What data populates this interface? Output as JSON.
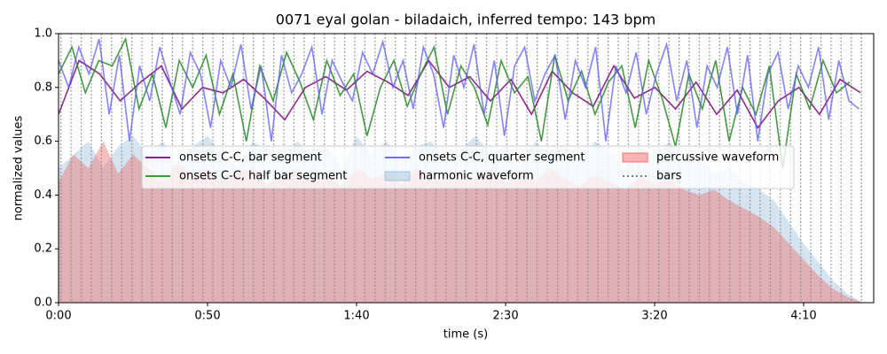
{
  "chart_data": {
    "type": "line",
    "title": "0071 eyal golan - biladaich, inferred tempo: 143 bpm",
    "x_label": "time (s)",
    "y_label": "normalized values",
    "xlim": [
      0,
      273.5
    ],
    "ylim": [
      0,
      1
    ],
    "xticks": [
      {
        "value": 0,
        "label": "0:00"
      },
      {
        "value": 50,
        "label": "0:50"
      },
      {
        "value": 100,
        "label": "1:40"
      },
      {
        "value": 150,
        "label": "2:30"
      },
      {
        "value": 200,
        "label": "3:20"
      },
      {
        "value": 250,
        "label": "4:10"
      }
    ],
    "yticks": [
      {
        "value": 0,
        "label": "0.0"
      },
      0.2,
      0.4,
      0.6,
      0.8,
      {
        "value": 1,
        "label": "1.0"
      }
    ],
    "legend": "upper center",
    "series": [
      {
        "name": "onsets C-C, bar segment",
        "kind": "line",
        "color": "#800080",
        "x": [
          0,
          6.9,
          13.8,
          20.7,
          27.6,
          34.5,
          41.4,
          48.3,
          55.2,
          62.1,
          69,
          75.9,
          82.8,
          89.7,
          96.6,
          103.5,
          110.4,
          117.3,
          124.2,
          131.1,
          138,
          144.9,
          151.8,
          158.7,
          165.6,
          172.5,
          179.4,
          186.3,
          193.2,
          200.1,
          207,
          213.9,
          220.8,
          227.7,
          234.6,
          241.5,
          248.4,
          255.3,
          262.2,
          269.1
        ],
        "values": [
          0.7,
          0.9,
          0.85,
          0.75,
          0.82,
          0.88,
          0.72,
          0.8,
          0.78,
          0.83,
          0.76,
          0.68,
          0.8,
          0.84,
          0.79,
          0.86,
          0.82,
          0.77,
          0.9,
          0.8,
          0.84,
          0.75,
          0.83,
          0.7,
          0.86,
          0.78,
          0.73,
          0.88,
          0.76,
          0.8,
          0.72,
          0.82,
          0.7,
          0.79,
          0.65,
          0.75,
          0.8,
          0.7,
          0.83,
          0.78
        ]
      },
      {
        "name": "onsets C-C, half bar segment",
        "kind": "line",
        "color": "#228b22",
        "x": [
          0,
          4.5,
          9,
          13.5,
          18,
          22.5,
          27,
          31.5,
          36,
          40.5,
          45,
          49.5,
          54,
          58.5,
          63,
          67.5,
          72,
          76.5,
          81,
          85.5,
          90,
          94.5,
          99,
          103.5,
          108,
          112.5,
          117,
          121.5,
          126,
          130.5,
          135,
          139.5,
          144,
          148.5,
          153,
          157.5,
          162,
          166.5,
          171,
          175.5,
          180,
          184.5,
          189,
          193.5,
          198,
          202.5,
          207,
          211.5,
          216,
          220.5,
          225,
          229.5,
          234,
          238.5,
          243,
          247.5,
          252,
          256.5,
          261,
          265.5
        ],
        "values": [
          0.85,
          0.95,
          0.78,
          0.9,
          0.88,
          0.98,
          0.72,
          0.85,
          0.65,
          0.9,
          0.8,
          0.92,
          0.7,
          0.85,
          0.6,
          0.88,
          0.75,
          0.93,
          0.82,
          0.68,
          0.9,
          0.77,
          0.85,
          0.62,
          0.8,
          0.9,
          0.73,
          0.85,
          0.95,
          0.7,
          0.88,
          0.8,
          0.66,
          0.9,
          0.78,
          0.84,
          0.6,
          0.92,
          0.75,
          0.86,
          0.7,
          0.82,
          0.88,
          0.65,
          0.9,
          0.76,
          0.58,
          0.85,
          0.72,
          0.9,
          0.6,
          0.8,
          0.7,
          0.88,
          0.5,
          0.85,
          0.72,
          0.9,
          0.78,
          0.82
        ]
      },
      {
        "name": "onsets C-C, quarter segment",
        "kind": "line",
        "color": "#5a5aff",
        "x": [
          0,
          3.4,
          6.8,
          10.2,
          13.6,
          17,
          20.4,
          23.8,
          27.2,
          30.6,
          34,
          37.4,
          40.8,
          44.2,
          47.6,
          51,
          54.4,
          57.8,
          61.2,
          64.6,
          68,
          71.4,
          74.8,
          78.2,
          81.6,
          85,
          88.4,
          91.8,
          95.2,
          98.6,
          102,
          105.4,
          108.8,
          112.2,
          115.6,
          119,
          122.4,
          125.8,
          129.2,
          132.6,
          136,
          139.4,
          142.8,
          146.2,
          149.6,
          153,
          156.4,
          159.8,
          163.2,
          166.6,
          170,
          173.4,
          176.8,
          180.2,
          183.6,
          187,
          190.4,
          193.8,
          197.2,
          200.6,
          204,
          207.4,
          210.8,
          214.2,
          217.6,
          221,
          224.4,
          227.8,
          231.2,
          234.6,
          238,
          241.4,
          244.8,
          248.2,
          251.6,
          255,
          258.4,
          261.8,
          265.2,
          268.6
        ],
        "values": [
          0.9,
          0.8,
          0.95,
          0.85,
          0.98,
          0.7,
          0.92,
          0.6,
          0.88,
          0.75,
          0.95,
          0.82,
          0.7,
          0.93,
          0.85,
          0.65,
          0.9,
          0.8,
          0.96,
          0.72,
          0.88,
          0.6,
          0.92,
          0.78,
          0.85,
          0.95,
          0.7,
          0.9,
          0.82,
          0.75,
          0.93,
          0.85,
          0.97,
          0.8,
          0.9,
          0.72,
          0.95,
          0.85,
          0.65,
          0.92,
          0.8,
          0.96,
          0.7,
          0.9,
          0.62,
          0.88,
          0.95,
          0.75,
          0.85,
          0.92,
          0.68,
          0.9,
          0.8,
          0.95,
          0.6,
          0.88,
          0.78,
          0.93,
          0.7,
          0.85,
          0.96,
          0.75,
          0.9,
          0.65,
          0.88,
          0.8,
          0.95,
          0.7,
          0.92,
          0.6,
          0.85,
          0.93,
          0.72,
          0.88,
          0.8,
          0.95,
          0.68,
          0.9,
          0.75,
          0.72
        ]
      },
      {
        "name": "harmonic waveform",
        "kind": "area",
        "color": "#9fc3e0",
        "x": [
          0,
          5,
          10,
          15,
          20,
          25,
          30,
          35,
          40,
          45,
          50,
          55,
          60,
          65,
          70,
          75,
          80,
          85,
          90,
          95,
          100,
          105,
          110,
          115,
          120,
          125,
          130,
          135,
          140,
          145,
          150,
          155,
          160,
          165,
          170,
          175,
          180,
          185,
          190,
          195,
          200,
          205,
          210,
          215,
          220,
          225,
          230,
          235,
          240,
          245,
          250,
          255,
          260,
          265,
          270
        ],
        "values": [
          0.5,
          0.55,
          0.6,
          0.5,
          0.58,
          0.62,
          0.55,
          0.6,
          0.52,
          0.58,
          0.62,
          0.55,
          0.5,
          0.6,
          0.57,
          0.52,
          0.6,
          0.55,
          0.58,
          0.5,
          0.62,
          0.55,
          0.6,
          0.53,
          0.58,
          0.6,
          0.52,
          0.57,
          0.62,
          0.55,
          0.58,
          0.5,
          0.6,
          0.55,
          0.58,
          0.52,
          0.6,
          0.56,
          0.5,
          0.58,
          0.55,
          0.6,
          0.52,
          0.55,
          0.48,
          0.5,
          0.45,
          0.42,
          0.38,
          0.3,
          0.22,
          0.15,
          0.08,
          0.03,
          0.0
        ]
      },
      {
        "name": "percussive waveform",
        "kind": "area",
        "color": "#f07070",
        "x": [
          0,
          5,
          10,
          15,
          20,
          25,
          30,
          35,
          40,
          45,
          50,
          55,
          60,
          65,
          70,
          75,
          80,
          85,
          90,
          95,
          100,
          105,
          110,
          115,
          120,
          125,
          130,
          135,
          140,
          145,
          150,
          155,
          160,
          165,
          170,
          175,
          180,
          185,
          190,
          195,
          200,
          205,
          210,
          215,
          220,
          225,
          230,
          235,
          240,
          245,
          250,
          255,
          260,
          265,
          270
        ],
        "values": [
          0.45,
          0.55,
          0.5,
          0.6,
          0.48,
          0.55,
          0.5,
          0.45,
          0.52,
          0.48,
          0.5,
          0.45,
          0.48,
          0.5,
          0.44,
          0.47,
          0.5,
          0.45,
          0.48,
          0.43,
          0.5,
          0.46,
          0.48,
          0.44,
          0.5,
          0.47,
          0.45,
          0.49,
          0.46,
          0.5,
          0.44,
          0.48,
          0.45,
          0.5,
          0.46,
          0.43,
          0.48,
          0.45,
          0.42,
          0.47,
          0.44,
          0.46,
          0.42,
          0.4,
          0.42,
          0.38,
          0.35,
          0.32,
          0.28,
          0.22,
          0.16,
          0.1,
          0.05,
          0.02,
          0.0
        ]
      },
      {
        "name": "bars",
        "kind": "vlines",
        "color": "#808080",
        "x": [
          0.8,
          4.2,
          7.6,
          11,
          14.4,
          17.8,
          21.2,
          24.6,
          28,
          31.4,
          34.8,
          38.2,
          41.6,
          45,
          48.4,
          51.8,
          55.2,
          58.6,
          62,
          65.4,
          68.8,
          72.2,
          75.6,
          79,
          82.4,
          85.8,
          89.2,
          92.6,
          96,
          99.4,
          102.8,
          106.2,
          109.6,
          113,
          116.4,
          119.8,
          123.2,
          126.6,
          130,
          133.4,
          136.8,
          140.2,
          143.6,
          147,
          150.4,
          153.8,
          157.2,
          160.6,
          164,
          167.4,
          170.8,
          174.2,
          177.6,
          181,
          184.4,
          187.8,
          191.2,
          194.6,
          198,
          201.4,
          204.8,
          208.2,
          211.6,
          215,
          218.4,
          221.8,
          225.2,
          228.6,
          232,
          235.4,
          238.8,
          242.2,
          245.6,
          249,
          252.4,
          255.8,
          259.2,
          262.6,
          266,
          269.4
        ]
      }
    ]
  }
}
